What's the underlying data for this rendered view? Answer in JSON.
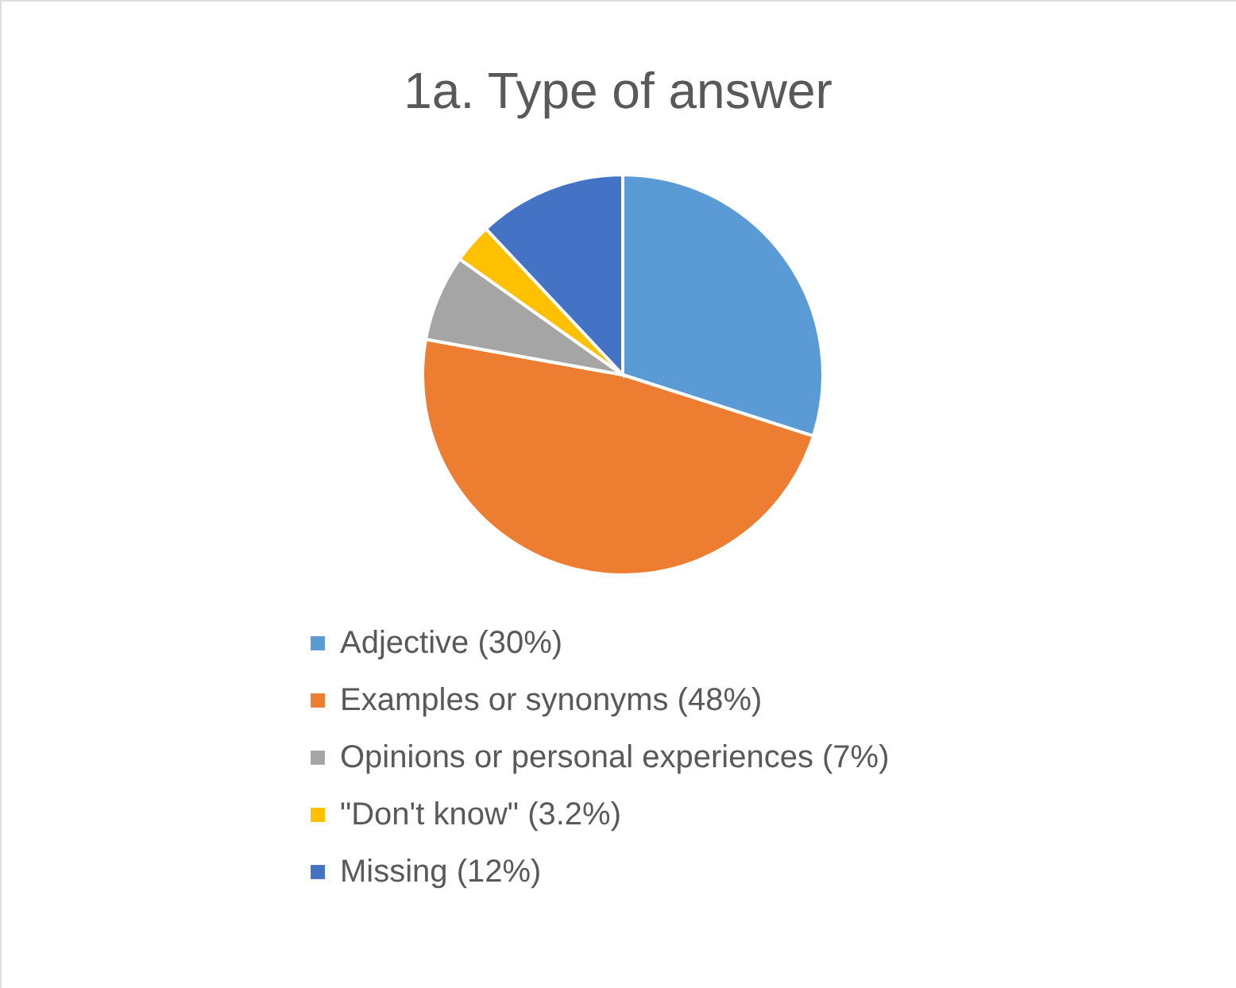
{
  "chart_data": {
    "type": "pie",
    "title": "1a. Type of answer",
    "categories": [
      "Adjective (30%)",
      "Examples or synonyms (48%)",
      "Opinions or personal experiences (7%)",
      "\"Don't know\" (3.2%)",
      "Missing (12%)"
    ],
    "values": [
      30,
      48,
      7,
      3.2,
      12
    ],
    "colors": [
      "#5b9bd5",
      "#ed7d31",
      "#a5a5a5",
      "#ffc000",
      "#4472c4"
    ],
    "legend": "bottom"
  }
}
